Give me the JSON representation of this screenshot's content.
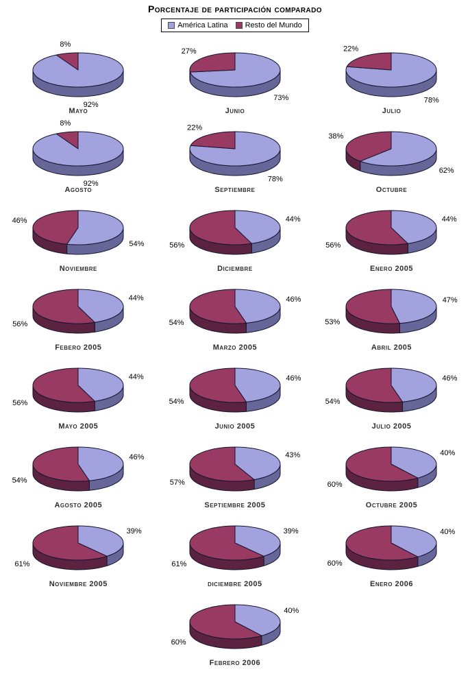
{
  "title": "Porcentaje de participación comparado",
  "legend": {
    "items": [
      {
        "label": "América Latina",
        "color": "#A2A2DE"
      },
      {
        "label": "Resto del Mundo",
        "color": "#983A62"
      }
    ]
  },
  "colors": {
    "america_latina_top": "#A2A2DE",
    "america_latina_side": "#666699",
    "resto_del_mundo_top": "#983A62",
    "resto_del_mundo_side": "#5C2340",
    "outline": "#14142e"
  },
  "chart_data": [
    {
      "type": "pie",
      "title": "Mayo",
      "categories": [
        "América Latina",
        "Resto del Mundo"
      ],
      "values": [
        92,
        8
      ],
      "labels": [
        "92%",
        "8%"
      ]
    },
    {
      "type": "pie",
      "title": "Junio",
      "categories": [
        "América Latina",
        "Resto del Mundo"
      ],
      "values": [
        73,
        27
      ],
      "labels": [
        "73%",
        "27%"
      ]
    },
    {
      "type": "pie",
      "title": "Julio",
      "categories": [
        "América Latina",
        "Resto del Mundo"
      ],
      "values": [
        78,
        22
      ],
      "labels": [
        "78%",
        "22%"
      ]
    },
    {
      "type": "pie",
      "title": "Agosto",
      "categories": [
        "América Latina",
        "Resto del Mundo"
      ],
      "values": [
        92,
        8
      ],
      "labels": [
        "92%",
        "8%"
      ]
    },
    {
      "type": "pie",
      "title": "Septiembre",
      "categories": [
        "América Latina",
        "Resto del Mundo"
      ],
      "values": [
        78,
        22
      ],
      "labels": [
        "78%",
        "22%"
      ]
    },
    {
      "type": "pie",
      "title": "Octubre",
      "categories": [
        "América Latina",
        "Resto del Mundo"
      ],
      "values": [
        62,
        38
      ],
      "labels": [
        "62%",
        "38%"
      ]
    },
    {
      "type": "pie",
      "title": "Noviembre",
      "categories": [
        "América Latina",
        "Resto del Mundo"
      ],
      "values": [
        54,
        46
      ],
      "labels": [
        "54%",
        "46%"
      ]
    },
    {
      "type": "pie",
      "title": "Diciembre",
      "categories": [
        "América Latina",
        "Resto del Mundo"
      ],
      "values": [
        44,
        56
      ],
      "labels": [
        "44%",
        "56%"
      ]
    },
    {
      "type": "pie",
      "title": "Enero 2005",
      "categories": [
        "América Latina",
        "Resto del Mundo"
      ],
      "values": [
        44,
        56
      ],
      "labels": [
        "44%",
        "56%"
      ]
    },
    {
      "type": "pie",
      "title": "Febero 2005",
      "categories": [
        "América Latina",
        "Resto del Mundo"
      ],
      "values": [
        44,
        56
      ],
      "labels": [
        "44%",
        "56%"
      ]
    },
    {
      "type": "pie",
      "title": "Marzo 2005",
      "categories": [
        "América Latina",
        "Resto del Mundo"
      ],
      "values": [
        46,
        54
      ],
      "labels": [
        "46%",
        "54%"
      ]
    },
    {
      "type": "pie",
      "title": "Abril 2005",
      "categories": [
        "América Latina",
        "Resto del Mundo"
      ],
      "values": [
        47,
        53
      ],
      "labels": [
        "47%",
        "53%"
      ]
    },
    {
      "type": "pie",
      "title": "Mayo 2005",
      "categories": [
        "América Latina",
        "Resto del Mundo"
      ],
      "values": [
        44,
        56
      ],
      "labels": [
        "44%",
        "56%"
      ]
    },
    {
      "type": "pie",
      "title": "Junio 2005",
      "categories": [
        "América Latina",
        "Resto del Mundo"
      ],
      "values": [
        46,
        54
      ],
      "labels": [
        "46%",
        "54%"
      ]
    },
    {
      "type": "pie",
      "title": "Julio 2005",
      "categories": [
        "América Latina",
        "Resto del Mundo"
      ],
      "values": [
        46,
        54
      ],
      "labels": [
        "46%",
        "54%"
      ]
    },
    {
      "type": "pie",
      "title": "Agosto 2005",
      "categories": [
        "América Latina",
        "Resto del Mundo"
      ],
      "values": [
        46,
        54
      ],
      "labels": [
        "46%",
        "54%"
      ]
    },
    {
      "type": "pie",
      "title": "Septiembre 2005",
      "categories": [
        "América Latina",
        "Resto del Mundo"
      ],
      "values": [
        43,
        57
      ],
      "labels": [
        "43%",
        "57%"
      ]
    },
    {
      "type": "pie",
      "title": "Octubre 2005",
      "categories": [
        "América Latina",
        "Resto del Mundo"
      ],
      "values": [
        40,
        60
      ],
      "labels": [
        "40%",
        "60%"
      ]
    },
    {
      "type": "pie",
      "title": "Noviembre 2005",
      "categories": [
        "América Latina",
        "Resto del Mundo"
      ],
      "values": [
        39,
        61
      ],
      "labels": [
        "39%",
        "61%"
      ]
    },
    {
      "type": "pie",
      "title": "diciembre 2005",
      "categories": [
        "América Latina",
        "Resto del Mundo"
      ],
      "values": [
        39,
        61
      ],
      "labels": [
        "39%",
        "61%"
      ]
    },
    {
      "type": "pie",
      "title": "Enero 2006",
      "categories": [
        "América Latina",
        "Resto del Mundo"
      ],
      "values": [
        40,
        60
      ],
      "labels": [
        "40%",
        "60%"
      ]
    },
    {
      "type": "pie",
      "title": "Febrero 2006",
      "categories": [
        "América Latina",
        "Resto del Mundo"
      ],
      "values": [
        40,
        60
      ],
      "labels": [
        "40%",
        "60%"
      ]
    }
  ]
}
